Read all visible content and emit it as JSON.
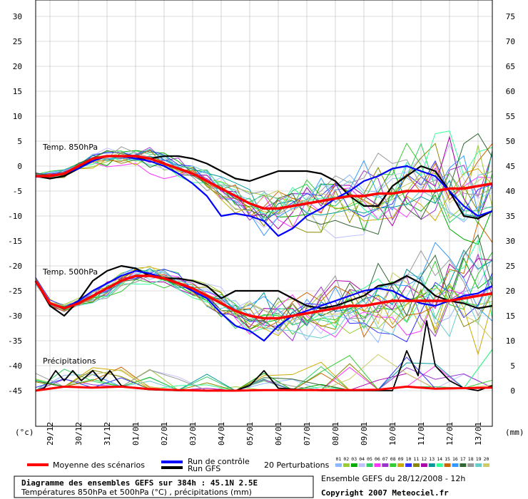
{
  "chart_data": {
    "type": "line",
    "left_axis": {
      "unit_label": "(°c)",
      "ticks": [
        30,
        25,
        20,
        15,
        10,
        5,
        0,
        -5,
        -10,
        -15,
        -20,
        -25,
        -30,
        -35,
        -40,
        -45
      ],
      "range": [
        -50,
        30
      ]
    },
    "right_axis": {
      "unit_label": "(mm)",
      "ticks": [
        75,
        70,
        65,
        60,
        55,
        50,
        45,
        40,
        35,
        30,
        25,
        20,
        15,
        10,
        5,
        0
      ]
    },
    "x_labels": [
      "29/12",
      "30/12",
      "31/12",
      "01/01",
      "02/01",
      "03/01",
      "04/01",
      "05/01",
      "06/01",
      "07/01",
      "08/01",
      "09/01",
      "10/01",
      "11/01",
      "12/01",
      "13/01"
    ],
    "x_days": [
      0.5,
      1.5,
      2.5,
      3.5,
      4.5,
      5.5,
      6.5,
      7.5,
      8.5,
      9.5,
      10.5,
      11.5,
      12.5,
      13.5,
      14.5,
      15.5
    ],
    "panel_labels": [
      "Temp. 850hPa",
      "Temp. 500hPa",
      "Précipitations"
    ],
    "mean_850": {
      "x": [
        0,
        0.5,
        1,
        1.5,
        2,
        2.5,
        3,
        3.5,
        4,
        4.5,
        5,
        5.5,
        6,
        6.5,
        7,
        7.5,
        8,
        8.5,
        9,
        9.5,
        10,
        10.5,
        11,
        11.5,
        12,
        12.5,
        13,
        13.5,
        14,
        14.5,
        15,
        15.5,
        16
      ],
      "y": [
        -2,
        -2,
        -1.5,
        0,
        1.5,
        2,
        2,
        2,
        1.5,
        0.5,
        -0.5,
        -1.5,
        -3,
        -4.5,
        -6,
        -7.5,
        -8.5,
        -8.5,
        -8,
        -7.5,
        -7,
        -6.5,
        -6,
        -6,
        -5.5,
        -5.5,
        -5,
        -5,
        -5,
        -4.5,
        -4.5,
        -4,
        -3.5
      ]
    },
    "mean_500": {
      "x": [
        0,
        0.5,
        1,
        1.5,
        2,
        2.5,
        3,
        3.5,
        4,
        4.5,
        5,
        5.5,
        6,
        6.5,
        7,
        7.5,
        8,
        8.5,
        9,
        9.5,
        10,
        10.5,
        11,
        11.5,
        12,
        12.5,
        13,
        13.5,
        14,
        14.5,
        15,
        15.5,
        16
      ],
      "y": [
        -23,
        -27.5,
        -28.5,
        -27.5,
        -26,
        -24.5,
        -23,
        -22,
        -22,
        -22.5,
        -23.5,
        -24.5,
        -26,
        -27.5,
        -29,
        -30,
        -30.5,
        -30.5,
        -30,
        -29.5,
        -29,
        -28.5,
        -28,
        -28,
        -27.5,
        -27,
        -27,
        -27,
        -27,
        -27,
        -26.5,
        -26,
        -25.5
      ]
    },
    "control_850": {
      "x": [
        0,
        0.5,
        1,
        1.5,
        2,
        2.5,
        3,
        3.5,
        4,
        4.5,
        5,
        5.5,
        6,
        6.5,
        7,
        7.5,
        8,
        8.5,
        9,
        9.5,
        10,
        10.5,
        11,
        11.5,
        12,
        12.5,
        13,
        13.5,
        14,
        14.5,
        15,
        15.5,
        16
      ],
      "y": [
        -2,
        -2,
        -1.5,
        -0.5,
        1,
        2,
        2,
        1.5,
        1,
        0,
        -1.5,
        -3.5,
        -6,
        -10,
        -9.5,
        -10,
        -11,
        -14,
        -12.5,
        -10,
        -8.5,
        -6.5,
        -5,
        -3,
        -2,
        -0.5,
        0,
        -1,
        -2,
        -5,
        -8,
        -10,
        -9
      ]
    },
    "control_500": {
      "x": [
        0,
        0.5,
        1,
        1.5,
        2,
        2.5,
        3,
        3.5,
        4,
        4.5,
        5,
        5.5,
        6,
        6.5,
        7,
        7.5,
        8,
        8.5,
        9,
        9.5,
        10,
        10.5,
        11,
        11.5,
        12,
        12.5,
        13,
        13.5,
        14,
        14.5,
        15,
        15.5,
        16
      ],
      "y": [
        -23,
        -27.5,
        -28.5,
        -27,
        -25,
        -23.5,
        -22,
        -21,
        -21.5,
        -22.5,
        -23.5,
        -25,
        -26.5,
        -29.5,
        -32,
        -33,
        -35,
        -32,
        -30,
        -29,
        -28,
        -27,
        -26,
        -25,
        -24.5,
        -25,
        -26.5,
        -27.5,
        -28,
        -27,
        -26,
        -25.5,
        -24
      ]
    },
    "gfs_850": {
      "x": [
        0,
        0.5,
        1,
        1.5,
        2,
        2.5,
        3,
        3.5,
        4,
        4.5,
        5,
        5.5,
        6,
        6.5,
        7,
        7.5,
        8,
        8.5,
        9,
        9.5,
        10,
        10.5,
        11,
        11.5,
        12,
        12.5,
        13,
        13.5,
        14,
        14.5,
        15,
        15.5,
        16
      ],
      "y": [
        -2,
        -2.5,
        -2,
        -0.5,
        1.5,
        2,
        2,
        1.5,
        1.5,
        2,
        2,
        1.5,
        0.5,
        -1,
        -2.5,
        -3,
        -2,
        -1,
        -1,
        -1,
        -1.5,
        -3,
        -6,
        -8,
        -8,
        -4,
        -2,
        0,
        -1,
        -5,
        -10,
        -10.5,
        -9
      ]
    },
    "gfs_500": {
      "x": [
        0,
        0.5,
        1,
        1.5,
        2,
        2.5,
        3,
        3.5,
        4,
        4.5,
        5,
        5.5,
        6,
        6.5,
        7,
        7.5,
        8,
        8.5,
        9,
        9.5,
        10,
        10.5,
        11,
        11.5,
        12,
        12.5,
        13,
        13.5,
        14,
        14.5,
        15,
        15.5,
        16
      ],
      "y": [
        -23,
        -28,
        -30,
        -27,
        -23,
        -21,
        -20,
        -20.5,
        -22,
        -22.5,
        -22.5,
        -23,
        -24,
        -26.5,
        -25,
        -25,
        -25,
        -25,
        -26.5,
        -28,
        -28.5,
        -28,
        -27,
        -26,
        -24,
        -23.5,
        -22,
        -23.5,
        -26,
        -27,
        -27.5,
        -28.5,
        -28
      ]
    },
    "mean_precip_mm": {
      "x": [
        0,
        1,
        2,
        3,
        4,
        5,
        6,
        7,
        8,
        9,
        10,
        11,
        12,
        13,
        14,
        15,
        16
      ],
      "y": [
        0,
        0.8,
        0.6,
        0.8,
        0.3,
        0.1,
        0,
        0,
        0.1,
        0.1,
        0.1,
        0.1,
        0.2,
        0.8,
        0.4,
        0.5,
        0.6
      ]
    },
    "gfs_precip_mm": {
      "x": [
        0,
        0.3,
        0.7,
        1,
        1.3,
        1.6,
        2,
        2.3,
        2.6,
        3,
        3.5,
        4,
        5,
        6,
        7,
        7.5,
        8,
        8.5,
        9,
        10,
        11,
        12,
        12.5,
        13,
        13.4,
        13.7,
        14,
        14.5,
        15,
        15.5,
        16
      ],
      "y": [
        0,
        0.5,
        4,
        2,
        4,
        2,
        4,
        2,
        4,
        1,
        0.5,
        0.2,
        0,
        0,
        0,
        1,
        4,
        0.5,
        0.3,
        0,
        0,
        0,
        0,
        8,
        3,
        14,
        5,
        2,
        0.5,
        0,
        1
      ]
    },
    "legend": {
      "mean": "Moyenne des scénarios",
      "control": "Run de contrôle",
      "gfs": "Run GFS",
      "perturbations": "20 Perturbations",
      "pert_numbers": [
        "01",
        "02",
        "03",
        "04",
        "05",
        "06",
        "07",
        "08",
        "09",
        "10",
        "11",
        "12",
        "13",
        "14",
        "15",
        "16",
        "17",
        "18",
        "19",
        "20"
      ],
      "pert_colors": [
        "#8db8ff",
        "#99cc33",
        "#00aa00",
        "#c0c0ff",
        "#33cc66",
        "#ff33ff",
        "#9933cc",
        "#33cc33",
        "#ccaa00",
        "#3333ff",
        "#888800",
        "#aa00aa",
        "#009999",
        "#33ff99",
        "#cc6600",
        "#3399ff",
        "#336633",
        "#999999",
        "#66cccc",
        "#cccc66"
      ]
    },
    "title": "Diagramme des ensembles GEFS sur 384h : 45.1N 2.5E",
    "subtitle": "Températures 850hPa et 500hPa (°C) , précipitations (mm)",
    "run_info": "Ensemble GEFS du 28/12/2008 - 12h",
    "copyright": "Copyright 2007 Meteociel.fr"
  }
}
